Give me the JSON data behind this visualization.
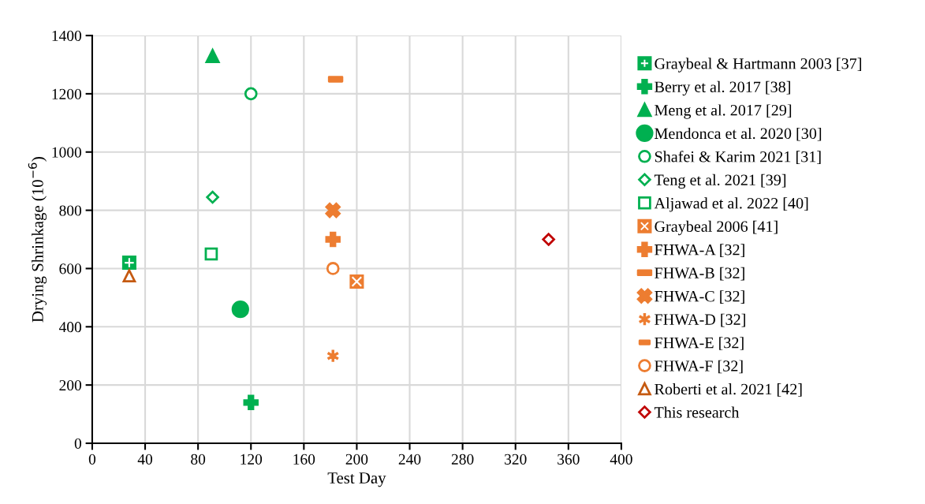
{
  "chart_data": {
    "type": "scatter",
    "xlabel": "Test Day",
    "ylabel": "Drying Shrinkage (10$^{−6}$)",
    "xlim": [
      0,
      400
    ],
    "xticks": [
      0,
      40,
      80,
      120,
      160,
      200,
      240,
      280,
      320,
      360,
      400
    ],
    "ylim": [
      0,
      1400
    ],
    "yticks": [
      0,
      200,
      400,
      600,
      800,
      1000,
      1200,
      1400
    ],
    "grid": true,
    "legend": "right",
    "series": [
      {
        "name": "Graybeal & Hartmann 2003 [37]",
        "color": "#00b050",
        "marker": "square",
        "x": [
          28
        ],
        "values": [
          620
        ]
      },
      {
        "name": "Berry et al. 2017 [38]",
        "color": "#00b050",
        "marker": "cross",
        "x": [
          120
        ],
        "values": [
          140
        ]
      },
      {
        "name": "Meng et al. 2017 [29]",
        "color": "#00b050",
        "marker": "triangle",
        "x": [
          91
        ],
        "values": [
          1330
        ]
      },
      {
        "name": "Mendonca et al. 2020 [30]",
        "color": "#00b050",
        "marker": "circle",
        "x": [
          112
        ],
        "values": [
          460
        ]
      },
      {
        "name": "Shafei & Karim 2021 [31]",
        "color": "#00b050",
        "marker": "circle",
        "x": [
          120
        ],
        "values": [
          1200
        ]
      },
      {
        "name": "Teng et al. 2021 [39]",
        "color": "#00b050",
        "marker": "diamond",
        "x": [
          91
        ],
        "values": [
          845
        ]
      },
      {
        "name": "Aljawad et al. 2022 [40]",
        "color": "#00b050",
        "marker": "square",
        "x": [
          90
        ],
        "values": [
          650
        ]
      },
      {
        "name": "Graybeal 2006 [41]",
        "color": "#ed7d31",
        "marker": "square",
        "x": [
          200
        ],
        "values": [
          555
        ]
      },
      {
        "name": "FHWA-A [32]",
        "color": "#ed7d31",
        "marker": "cross",
        "x": [
          182
        ],
        "values": [
          700
        ]
      },
      {
        "name": "FHWA-B [32]",
        "color": "#ed7d31",
        "x": [
          184
        ],
        "values": [
          1250
        ]
      },
      {
        "name": "FHWA-C [32]",
        "color": "#ed7d31",
        "marker": "cross",
        "x": [
          182
        ],
        "values": [
          800
        ]
      },
      {
        "name": "FHWA-D [32]",
        "color": "#ed7d31",
        "marker": "cross",
        "x": [
          182
        ],
        "values": [
          300
        ]
      },
      {
        "name": "FHWA-E [32]",
        "color": "#ed7d31",
        "x": [
          null
        ],
        "values": [
          null
        ]
      },
      {
        "name": "FHWA-F [32]",
        "color": "#ed7d31",
        "marker": "circle",
        "x": [
          182
        ],
        "values": [
          600
        ]
      },
      {
        "name": "Roberti et al. 2021 [42]",
        "color": "#c55a11",
        "marker": "triangle",
        "x": [
          28
        ],
        "values": [
          575
        ]
      },
      {
        "name": "This research",
        "color": "#c00000",
        "marker": "diamond",
        "x": [
          345
        ],
        "values": [
          700
        ]
      }
    ]
  }
}
